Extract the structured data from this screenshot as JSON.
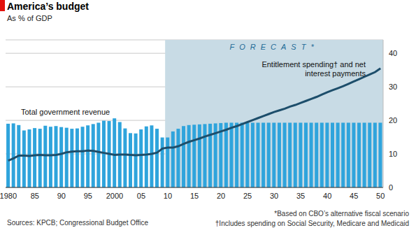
{
  "chart_data": {
    "type": "bar",
    "title": "America’s budget",
    "subtitle": "As % of GDP",
    "categories": [
      "1980",
      null,
      null,
      null,
      null,
      "85",
      null,
      null,
      null,
      null,
      "90",
      null,
      null,
      null,
      null,
      "95",
      null,
      null,
      null,
      null,
      "2000",
      null,
      null,
      null,
      null,
      "05",
      null,
      null,
      null,
      null,
      "10",
      null,
      null,
      null,
      null,
      "15",
      null,
      null,
      null,
      null,
      "20",
      null,
      null,
      null,
      null,
      "25",
      null,
      null,
      null,
      null,
      "30",
      null,
      null,
      null,
      null,
      "35",
      null,
      null,
      null,
      null,
      "40",
      null,
      null,
      null,
      null,
      "45",
      null,
      null,
      null,
      null,
      "50"
    ],
    "series": [
      {
        "name": "Total government revenue",
        "type": "bar",
        "color": "#2fa4dc",
        "values": [
          19.0,
          19.1,
          18.6,
          17.0,
          17.3,
          17.7,
          17.5,
          18.4,
          18.1,
          18.3,
          18.0,
          17.8,
          17.5,
          17.6,
          18.1,
          18.5,
          18.9,
          19.3,
          19.9,
          19.8,
          20.6,
          19.5,
          17.6,
          16.2,
          16.1,
          17.3,
          18.2,
          18.5,
          17.5,
          14.9,
          14.9,
          16.7,
          17.5,
          18.3,
          18.6,
          18.7,
          18.8,
          18.9,
          19.0,
          19.1,
          19.2,
          19.3,
          19.3,
          19.3,
          19.3,
          19.3,
          19.3,
          19.3,
          19.3,
          19.3,
          19.3,
          19.3,
          19.3,
          19.3,
          19.3,
          19.3,
          19.3,
          19.3,
          19.3,
          19.3,
          19.3,
          19.3,
          19.3,
          19.3,
          19.3,
          19.3,
          19.3,
          19.3,
          19.3,
          19.3,
          19.3
        ]
      },
      {
        "name": "Entitlement spending† and net interest payments",
        "type": "line",
        "color": "#1d4e6b",
        "values": [
          8.0,
          8.7,
          9.5,
          9.5,
          9.4,
          9.6,
          9.7,
          9.6,
          9.6,
          9.7,
          10.0,
          10.5,
          10.7,
          10.8,
          10.8,
          11.0,
          10.9,
          10.6,
          10.3,
          10.0,
          9.7,
          9.8,
          9.8,
          9.7,
          9.6,
          9.7,
          9.8,
          10.0,
          10.4,
          11.6,
          11.9,
          11.9,
          12.3,
          13.0,
          13.6,
          14.1,
          14.6,
          15.2,
          15.7,
          16.2,
          16.7,
          17.2,
          17.8,
          18.3,
          18.9,
          19.5,
          20.1,
          20.7,
          21.3,
          21.9,
          22.5,
          23.0,
          23.5,
          24.1,
          24.6,
          25.2,
          25.8,
          26.4,
          27.0,
          27.7,
          28.4,
          29.0,
          29.6,
          30.2,
          30.9,
          31.6,
          32.3,
          33.0,
          33.7,
          34.4,
          35.5
        ]
      }
    ],
    "ylim": [
      0,
      44
    ],
    "yticks": [
      0,
      10,
      20,
      30,
      40
    ],
    "grid": true,
    "forecast": {
      "label": "FORECAST*",
      "start": "10",
      "end": "50"
    },
    "notes": [
      "*Based on CBO’s alternative fiscal scenario",
      "†Includes spending on Social Security, Medicare and Medicaid"
    ],
    "source": "Sources: KPCB; Congressional Budget Office"
  }
}
